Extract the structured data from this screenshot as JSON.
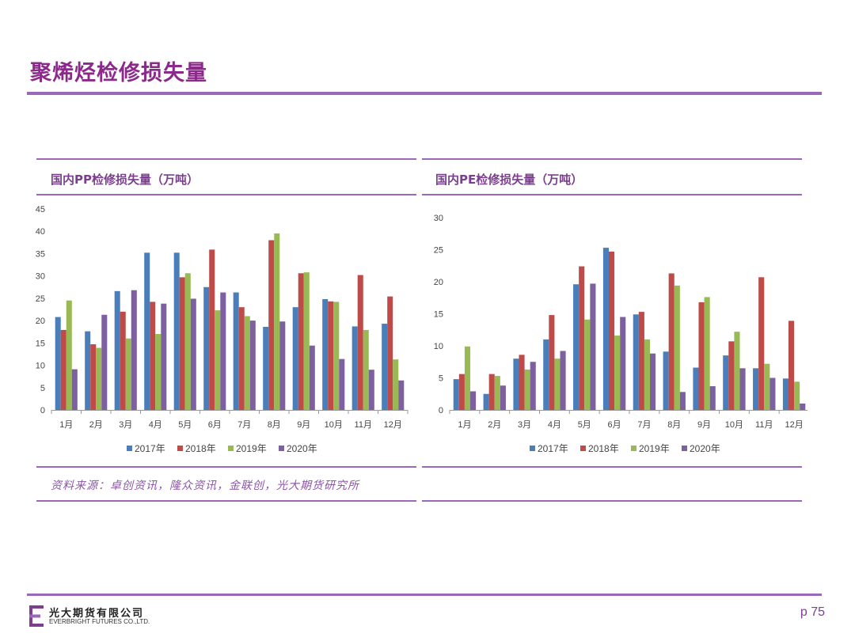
{
  "page": {
    "title": "聚烯烃检修损失量",
    "source_note": "资料来源：卓创资讯，隆众资讯，金联创，光大期货研究所",
    "page_number": "p 75",
    "company_cn": "光大期货有限公司",
    "company_en": "EVERBRIGHT FUTURES CO.,LTD.",
    "accent_color": "#8b2a8b"
  },
  "panels": {
    "pp_title": "国内PP检修损失量（万吨）",
    "pe_title": "国内PE检修损失量（万吨）"
  },
  "chart_data": [
    {
      "type": "bar",
      "title": "国内PP检修损失量（万吨）",
      "categories": [
        "1月",
        "2月",
        "3月",
        "4月",
        "5月",
        "6月",
        "7月",
        "8月",
        "9月",
        "10月",
        "11月",
        "12月"
      ],
      "ylim": [
        0,
        45
      ],
      "yticks": [
        0,
        5,
        10,
        15,
        20,
        25,
        30,
        35,
        40,
        45
      ],
      "legend": "bottom",
      "grid": false,
      "series": [
        {
          "name": "2017年",
          "color": "#4a7ebb",
          "values": [
            20.8,
            17.6,
            26.6,
            35.2,
            35.2,
            27.5,
            26.3,
            18.6,
            23.0,
            24.8,
            18.7,
            19.3
          ]
        },
        {
          "name": "2018年",
          "color": "#be4b48",
          "values": [
            17.9,
            14.7,
            22.0,
            24.2,
            29.7,
            35.9,
            23.0,
            38.0,
            30.6,
            24.3,
            30.2,
            25.4
          ]
        },
        {
          "name": "2019年",
          "color": "#98b954",
          "values": [
            24.5,
            13.9,
            16.0,
            17.0,
            30.6,
            22.3,
            21.0,
            39.5,
            30.8,
            24.2,
            17.9,
            11.3
          ]
        },
        {
          "name": "2020年",
          "color": "#7d60a0",
          "values": [
            9.1,
            21.3,
            26.8,
            23.8,
            24.9,
            26.3,
            20.0,
            19.8,
            14.4,
            11.4,
            9.0,
            6.6
          ]
        }
      ]
    },
    {
      "type": "bar",
      "title": "国内PE检修损失量（万吨）",
      "categories": [
        "1月",
        "2月",
        "3月",
        "4月",
        "5月",
        "6月",
        "7月",
        "8月",
        "9月",
        "10月",
        "11月",
        "12月"
      ],
      "ylim": [
        0,
        30
      ],
      "yticks": [
        0,
        5,
        10,
        15,
        20,
        25,
        30
      ],
      "legend": "bottom",
      "grid": false,
      "series": [
        {
          "name": "2017年",
          "color": "#4a7ebb",
          "values": [
            4.8,
            2.5,
            8.0,
            11.0,
            19.6,
            25.3,
            14.9,
            9.1,
            6.6,
            8.5,
            6.5,
            4.9
          ]
        },
        {
          "name": "2018年",
          "color": "#be4b48",
          "values": [
            5.6,
            5.6,
            8.6,
            14.8,
            22.4,
            24.7,
            15.3,
            21.3,
            16.8,
            10.7,
            20.7,
            13.9
          ]
        },
        {
          "name": "2019年",
          "color": "#98b954",
          "values": [
            9.9,
            5.3,
            6.3,
            8.0,
            14.1,
            11.6,
            11.0,
            19.4,
            17.6,
            12.2,
            7.2,
            4.4
          ]
        },
        {
          "name": "2020年",
          "color": "#7d60a0",
          "values": [
            2.9,
            3.8,
            7.5,
            9.2,
            19.7,
            14.5,
            8.8,
            2.8,
            3.7,
            6.5,
            5.0,
            1.0
          ]
        }
      ]
    }
  ]
}
